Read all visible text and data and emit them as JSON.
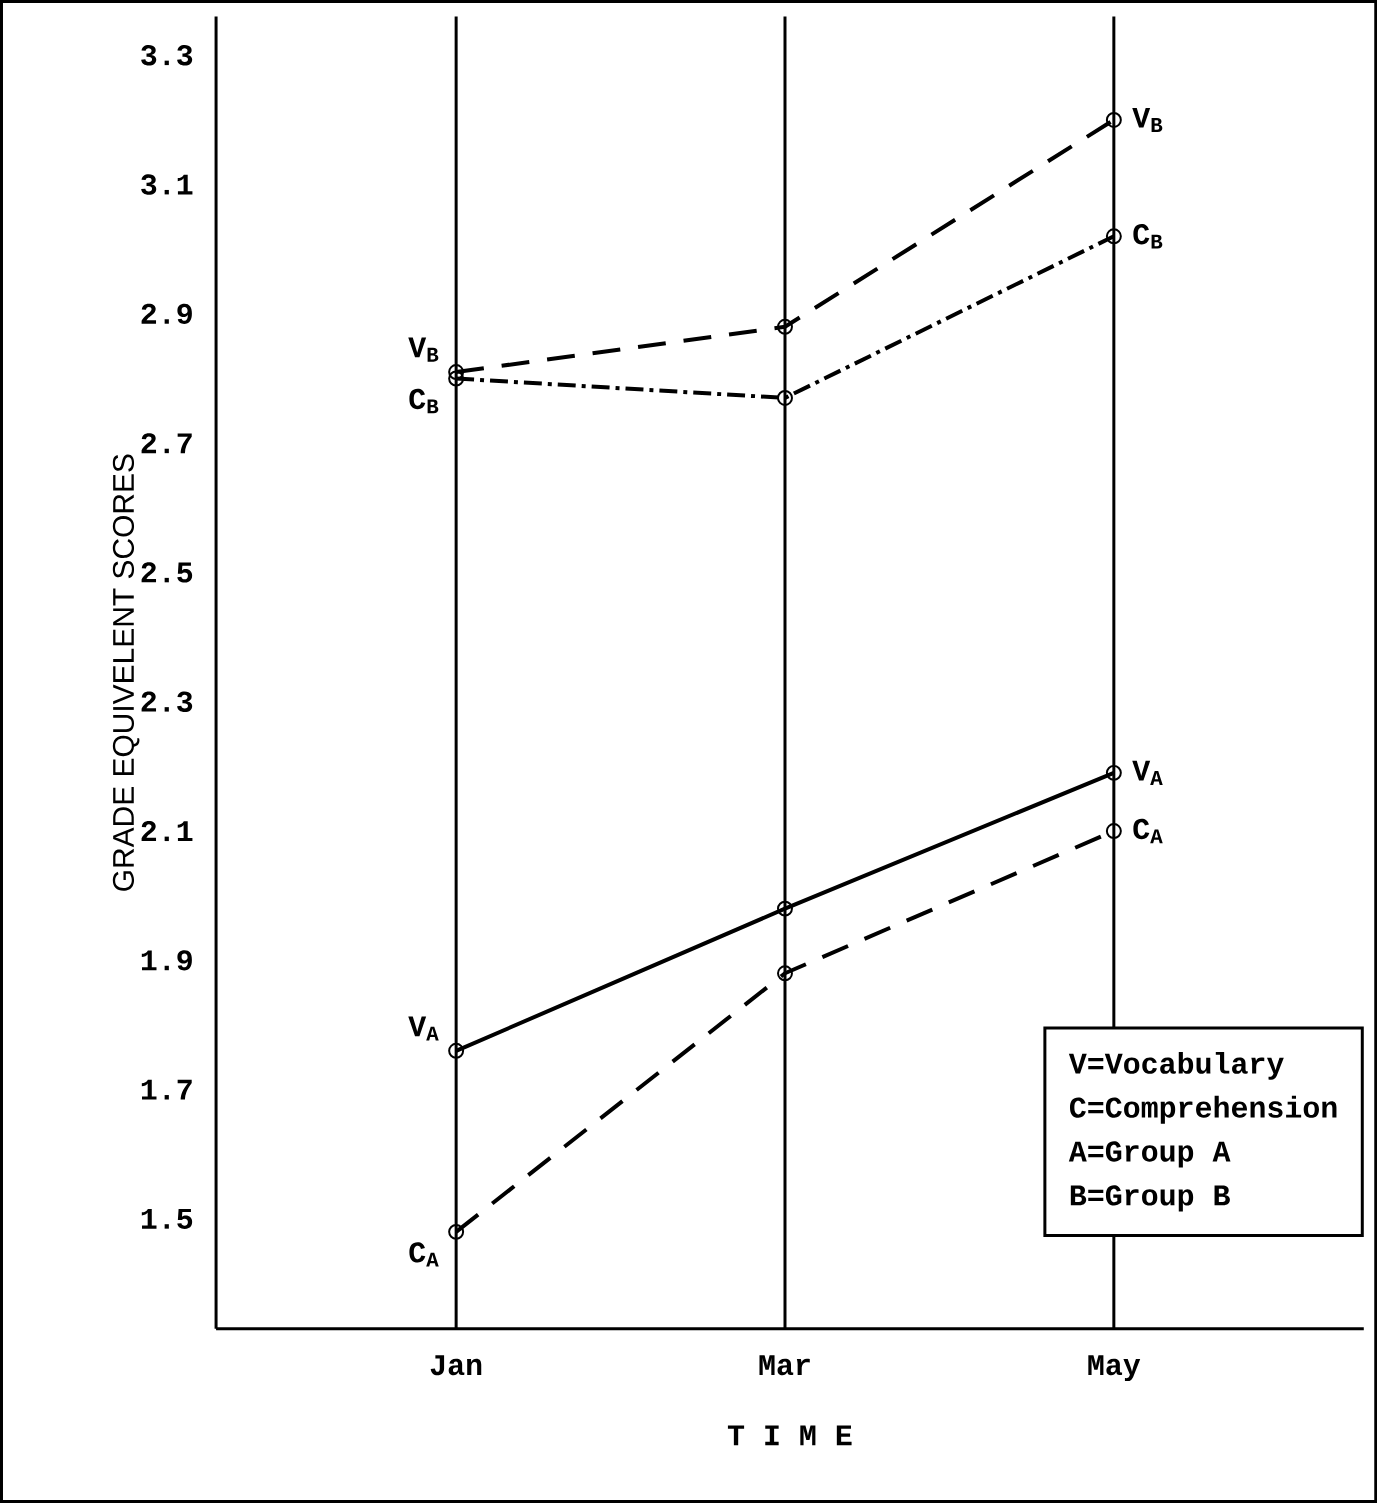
{
  "chart_data": {
    "type": "line",
    "ylabel": "GRADE EQUIVELENT SCORES",
    "xlabel": "T I M E",
    "categories": [
      "Jan",
      "Mar",
      "May"
    ],
    "series": [
      {
        "name": "V$_{B}$",
        "color": "#000000",
        "values": [
          2.81,
          2.88,
          3.2
        ],
        "line_style": "dashed"
      },
      {
        "name": "C$_{B}$",
        "color": "#000000",
        "values": [
          2.8,
          2.77,
          3.02
        ],
        "line_style": "dotted"
      },
      {
        "name": "V$_{A}$",
        "color": "#000000",
        "values": [
          1.76,
          1.98,
          2.19
        ],
        "line_style": "solid"
      },
      {
        "name": "C$_{A}$",
        "color": "#000000",
        "values": [
          1.48,
          1.88,
          2.1
        ],
        "line_style": "dashed"
      }
    ],
    "ylim": [
      1.33,
      3.36
    ],
    "yticks": [
      1.5,
      1.7,
      1.9,
      2.1,
      2.3,
      2.5,
      2.7,
      2.9,
      3.1,
      3.3
    ],
    "grid": "x",
    "marker": "circle",
    "annotations": [
      "V=Vocabulary",
      "C=Comprehension",
      "A=Group A",
      "B=Group B"
    ]
  }
}
